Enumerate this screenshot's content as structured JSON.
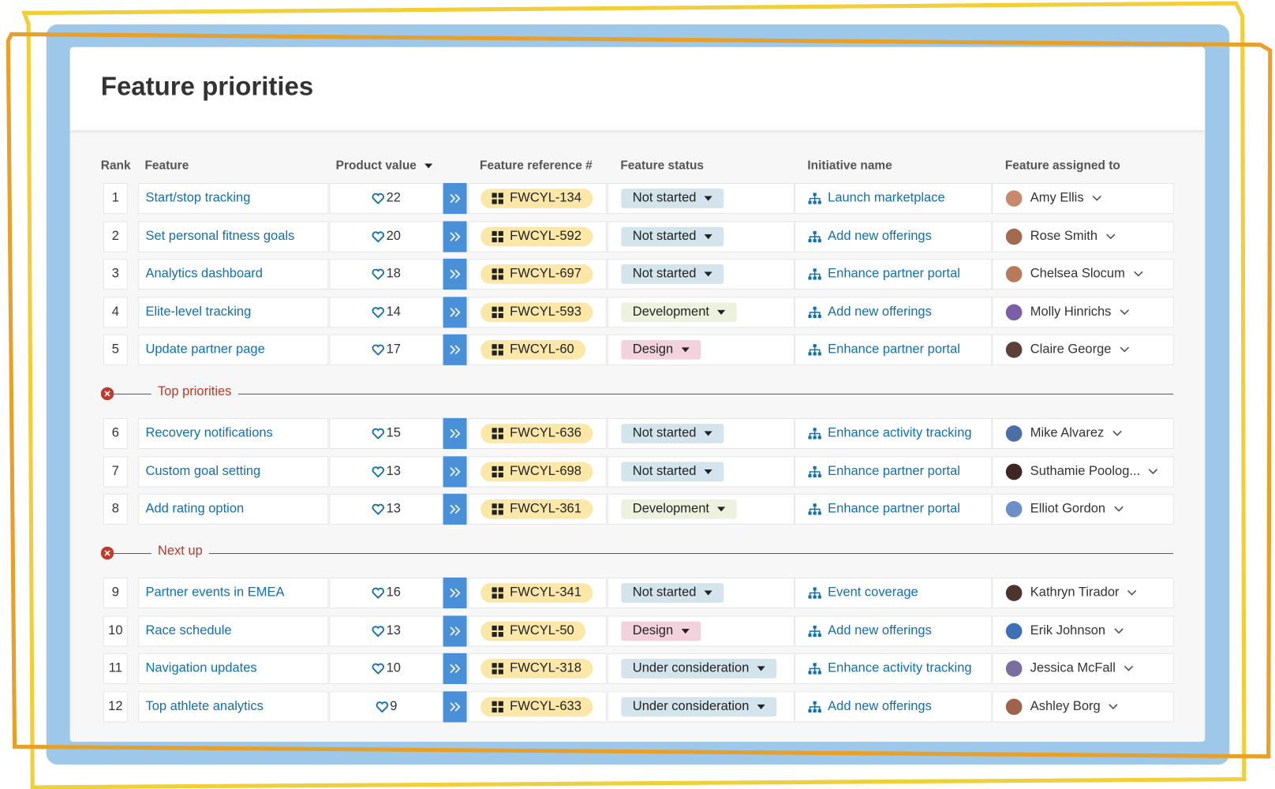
{
  "title": "Feature priorities",
  "columns": [
    "Rank",
    "Feature",
    "Product value",
    "Feature reference #",
    "Feature status",
    "Initiative name",
    "Feature assigned to"
  ],
  "groups": [
    {
      "rows": [
        [
          1,
          "Start/stop tracking",
          22,
          "FWCYL-134",
          "Not started",
          "Launch marketplace",
          "Amy Ellis"
        ],
        [
          2,
          "Set personal fitness goals",
          20,
          "FWCYL-592",
          "Not started",
          "Add new offerings",
          "Rose Smith"
        ],
        [
          3,
          "Analytics dashboard",
          18,
          "FWCYL-697",
          "Not started",
          "Enhance partner portal",
          "Chelsea Slocum"
        ],
        [
          4,
          "Elite-level tracking",
          14,
          "FWCYL-593",
          "Development",
          "Add new offerings",
          "Molly Hinrichs"
        ],
        [
          5,
          "Update partner page",
          17,
          "FWCYL-60",
          "Design",
          "Enhance partner portal",
          "Claire George"
        ]
      ]
    },
    {
      "label": "Top priorities",
      "rows": [
        [
          6,
          "Recovery notifications",
          15,
          "FWCYL-636",
          "Not started",
          "Enhance activity tracking",
          "Mike Alvarez"
        ],
        [
          7,
          "Custom goal setting",
          13,
          "FWCYL-698",
          "Not started",
          "Enhance partner portal",
          "Suthamie Poolog..."
        ],
        [
          8,
          "Add rating option",
          13,
          "FWCYL-361",
          "Development",
          "Enhance partner portal",
          "Elliot Gordon"
        ]
      ]
    },
    {
      "label": "Next up",
      "rows": [
        [
          9,
          "Partner events in EMEA",
          16,
          "FWCYL-341",
          "Not started",
          "Event coverage",
          "Kathryn Tirador"
        ],
        [
          10,
          "Race schedule",
          13,
          "FWCYL-50",
          "Design",
          "Add new offerings",
          "Erik Johnson"
        ],
        [
          11,
          "Navigation updates",
          10,
          "FWCYL-318",
          "Under consideration",
          "Enhance activity tracking",
          "Jessica McFall"
        ],
        [
          12,
          "Top athlete analytics",
          9,
          "FWCYL-633",
          "Under consideration",
          "Add new offerings",
          "Ashley Borg"
        ]
      ]
    }
  ]
}
